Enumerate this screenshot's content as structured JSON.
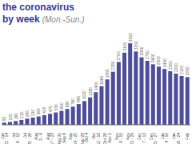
{
  "chart_data": {
    "type": "bar",
    "title": "the coronavirus",
    "subtitle": "by week",
    "annotations": [
      "(Mon.-Sun.)"
    ],
    "categories": [
      "Jun\n22 - 14",
      null,
      "Jul\n6 - 12",
      null,
      "Jul\n20 - 26",
      null,
      "Aug\n3 - 9",
      null,
      "Aug\n17 - 23",
      null,
      "Aug 31\n- Sep 6",
      null,
      "Sep\n14 - 20",
      null,
      "Sep 28\n- Oct 4",
      null,
      "Oct\n12 - 18",
      null,
      "Oct 26\n- Nov 1",
      null,
      "Nov\n9 - 15",
      null,
      "Nov\n23 - 29",
      null,
      "Dec\n7 - 13",
      null,
      "Dec\n21 - 27",
      null,
      "Jan\n4 - 10",
      null,
      "Jan\n18 - 24",
      null,
      "Feb"
    ],
    "values": [
      95,
      120,
      160,
      210,
      265,
      310,
      360,
      415,
      470,
      530,
      600,
      680,
      780,
      890,
      1020,
      1180,
      1400,
      1660,
      1950,
      2280,
      2700,
      3100,
      3500,
      3150,
      2900,
      2750,
      2600,
      2500,
      2400,
      2300,
      2200,
      2100,
      2050
    ],
    "color": "#4d4d9a",
    "ylim": [
      0,
      3780
    ],
    "data_labels": true,
    "tick_labels": "x",
    "grid": false
  }
}
